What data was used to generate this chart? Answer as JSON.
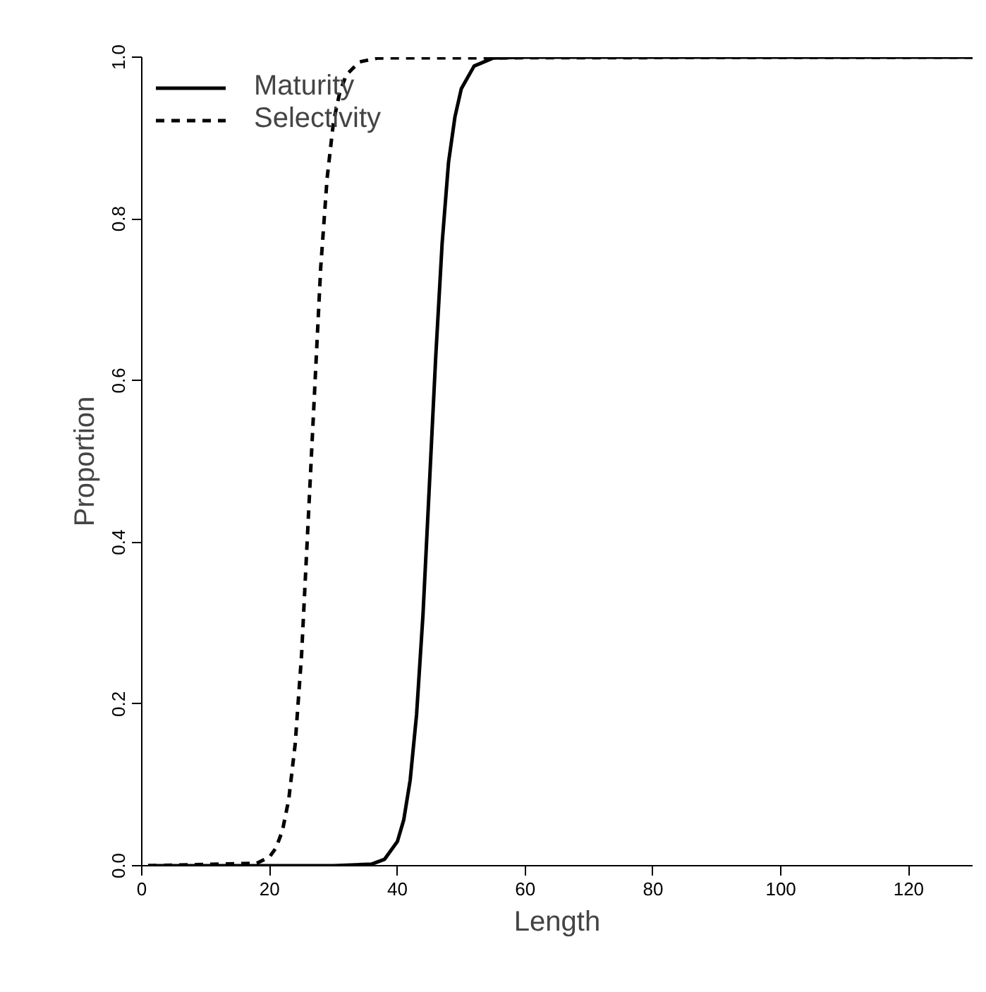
{
  "chart_data": {
    "type": "line",
    "xlabel": "Length",
    "ylabel": "Proportion",
    "xlim": [
      0,
      130
    ],
    "ylim": [
      0,
      1
    ],
    "xticks": [
      0,
      20,
      40,
      60,
      80,
      100,
      120
    ],
    "yticks": [
      {
        "value": 0,
        "label": "0.0"
      },
      {
        "value": 0.2,
        "label": "0.2"
      },
      {
        "value": 0.4,
        "label": "0.4"
      },
      {
        "value": 0.6,
        "label": "0.6"
      },
      {
        "value": 0.8,
        "label": "0.8"
      },
      {
        "value": 1,
        "label": "1.0"
      }
    ],
    "grid": false,
    "legend": "top left",
    "marker": "none",
    "series": [
      {
        "name": "Maturity",
        "color": "#000000",
        "line_style": "solid",
        "x": [
          1,
          30,
          36,
          38,
          40,
          41,
          42,
          43,
          44,
          45,
          46,
          47,
          48,
          49,
          50,
          52,
          55,
          60,
          130
        ],
        "values": [
          0,
          0,
          0.002,
          0.008,
          0.03,
          0.057,
          0.106,
          0.187,
          0.31,
          0.47,
          0.63,
          0.77,
          0.87,
          0.926,
          0.961,
          0.989,
          0.999,
          1,
          1
        ]
      },
      {
        "name": "Selectivity",
        "color": "#000000",
        "line_style": "dashed",
        "x": [
          1,
          18,
          20,
          21,
          22,
          23,
          24,
          25,
          26,
          27,
          28,
          29,
          30,
          31,
          32,
          34,
          37,
          130
        ],
        "values": [
          0,
          0.003,
          0.011,
          0.022,
          0.043,
          0.082,
          0.15,
          0.26,
          0.42,
          0.58,
          0.74,
          0.85,
          0.92,
          0.957,
          0.978,
          0.994,
          0.999,
          1
        ]
      }
    ]
  }
}
